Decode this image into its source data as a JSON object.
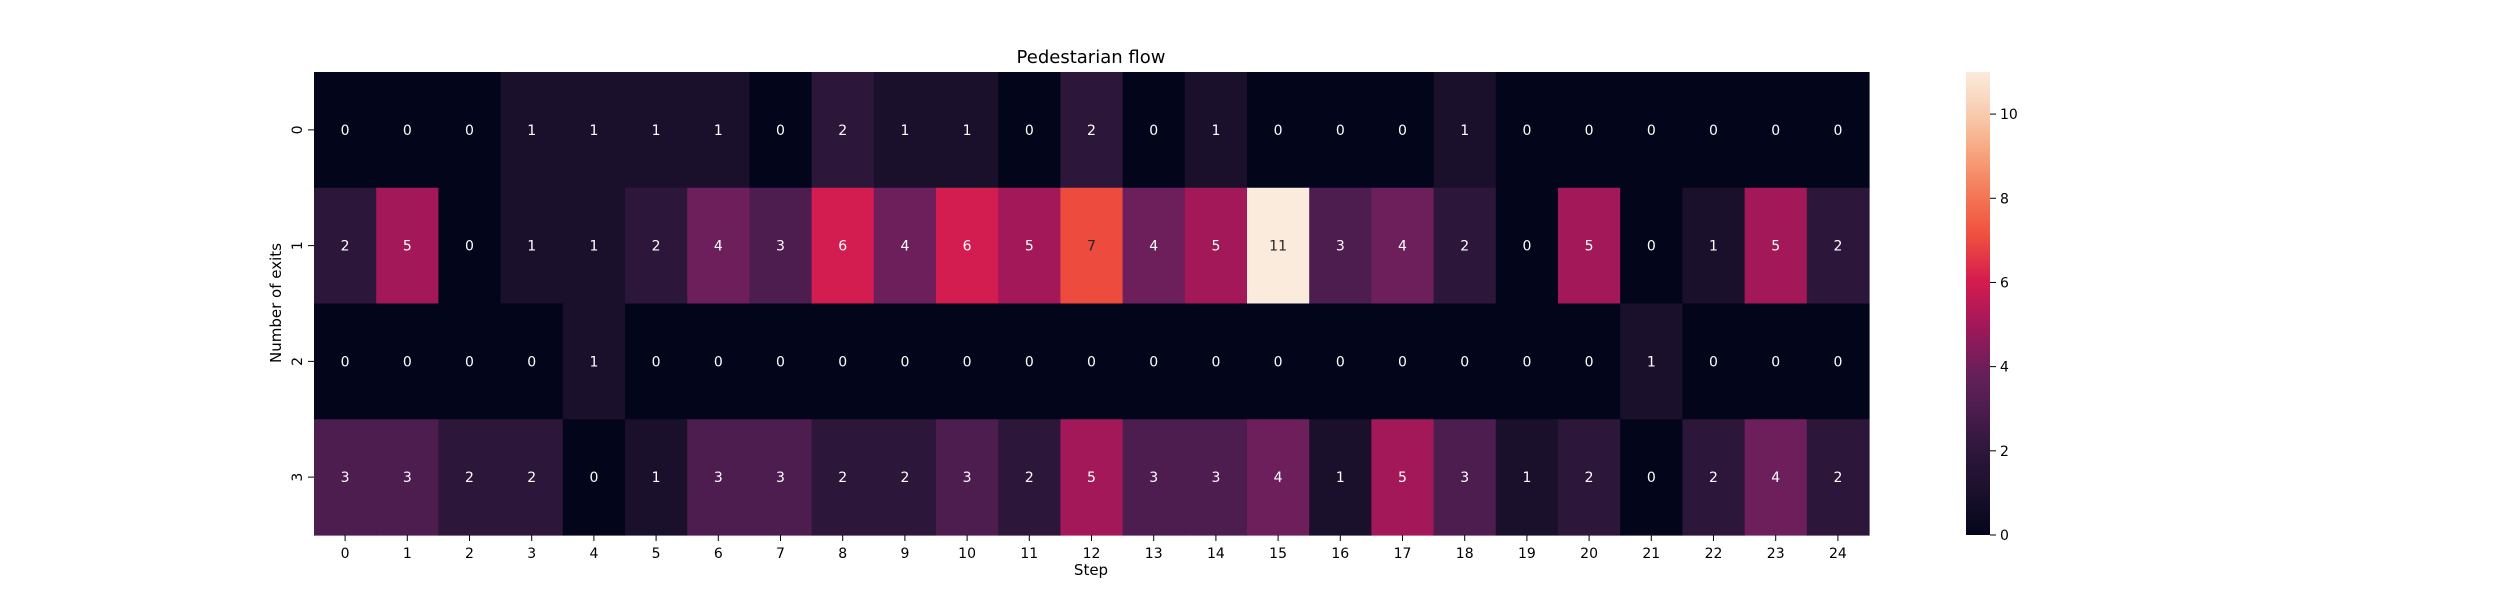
{
  "chart_data": {
    "type": "heatmap",
    "title": "Pedestarian flow",
    "xlabel": "Step",
    "ylabel": "Number of exits",
    "x_categories": [
      "0",
      "1",
      "2",
      "3",
      "4",
      "5",
      "6",
      "7",
      "8",
      "9",
      "10",
      "11",
      "12",
      "13",
      "14",
      "15",
      "16",
      "17",
      "18",
      "19",
      "20",
      "21",
      "22",
      "23",
      "24"
    ],
    "y_categories": [
      "0",
      "1",
      "2",
      "3"
    ],
    "values": [
      [
        0,
        0,
        0,
        1,
        1,
        1,
        1,
        0,
        2,
        1,
        1,
        0,
        2,
        0,
        1,
        0,
        0,
        0,
        1,
        0,
        0,
        0,
        0,
        0,
        0
      ],
      [
        2,
        5,
        0,
        1,
        1,
        2,
        4,
        3,
        6,
        4,
        6,
        5,
        7,
        4,
        5,
        11,
        3,
        4,
        2,
        0,
        5,
        0,
        1,
        5,
        2
      ],
      [
        0,
        0,
        0,
        0,
        1,
        0,
        0,
        0,
        0,
        0,
        0,
        0,
        0,
        0,
        0,
        0,
        0,
        0,
        0,
        0,
        0,
        1,
        0,
        0,
        0
      ],
      [
        3,
        3,
        2,
        2,
        0,
        1,
        3,
        3,
        2,
        2,
        3,
        2,
        5,
        3,
        3,
        4,
        1,
        5,
        3,
        1,
        2,
        0,
        2,
        4,
        2
      ]
    ],
    "colorbar": {
      "min": 0,
      "max": 11,
      "ticks": [
        0,
        2,
        4,
        6,
        8,
        10
      ]
    },
    "colormap": "rocket"
  }
}
